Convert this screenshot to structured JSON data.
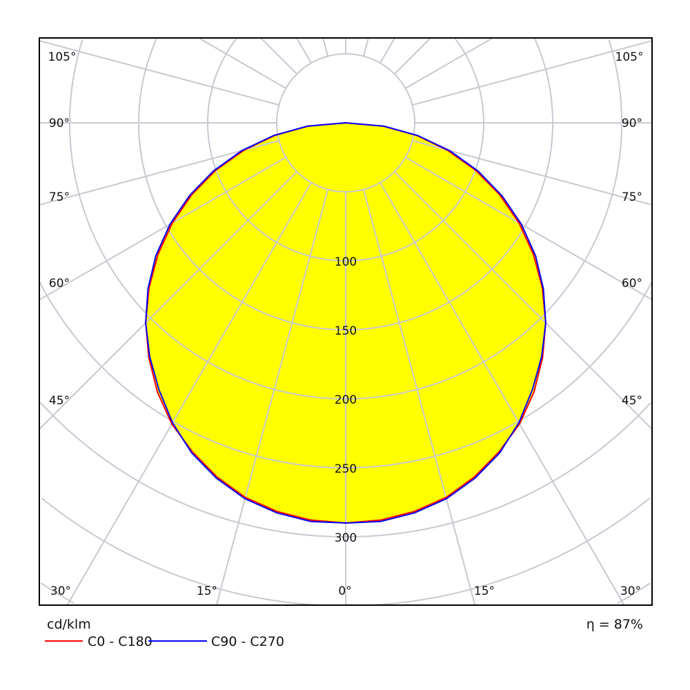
{
  "chart_data": {
    "type": "polar",
    "unit_label": "cd/klm",
    "efficiency_label": "η = 87%",
    "angles_deg": [
      0,
      5,
      10,
      15,
      20,
      25,
      30,
      35,
      40,
      45,
      50,
      55,
      60,
      65,
      70,
      75,
      80,
      85,
      90
    ],
    "series": [
      {
        "name": "C0 - C180",
        "color": "#ff0000",
        "values": [
          290,
          289,
          286,
          281,
          273,
          263,
          252,
          238,
          222,
          205,
          186,
          166,
          145,
          123,
          100,
          76,
          52,
          27,
          0
        ]
      },
      {
        "name": "C90 - C270",
        "color": "#0000ff",
        "values": [
          290,
          290,
          287,
          282,
          274,
          264,
          251,
          236,
          221,
          205,
          187,
          168,
          147,
          125,
          102,
          78,
          53,
          28,
          0
        ]
      }
    ],
    "fill_color": "#ffff00",
    "radial_ticks": [
      100,
      150,
      200,
      250,
      300
    ],
    "radial_tick_labels": [
      "100",
      "150",
      "200",
      "250",
      "300"
    ],
    "angle_tick_labels": [
      "105°",
      "90°",
      "75°",
      "60°",
      "45°",
      "30°",
      "15°",
      "0°"
    ],
    "r_per_ring": 50,
    "grid": true
  }
}
